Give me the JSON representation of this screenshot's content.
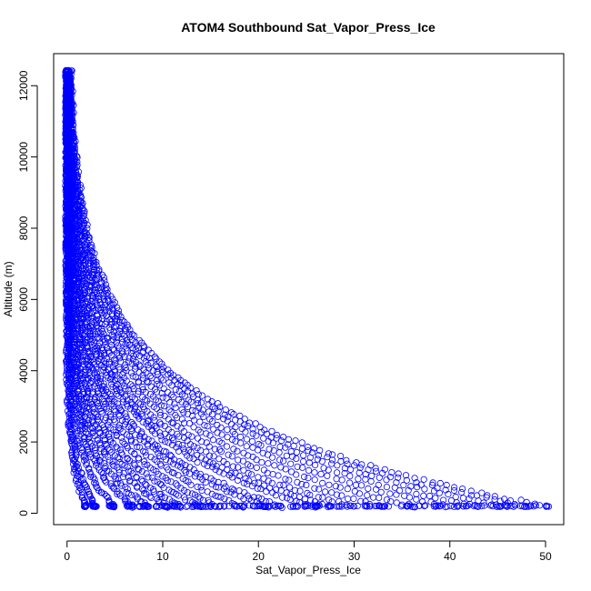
{
  "chart_data": {
    "type": "scatter",
    "title": "ATOM4 Southbound Sat_Vapor_Press_Ice",
    "xlabel": "Sat_Vapor_Press_Ice",
    "ylabel": "Altitude (m)",
    "xlim": [
      -1.4,
      51.9
    ],
    "ylim": [
      -320,
      12900
    ],
    "x_ticks": [
      0,
      10,
      20,
      30,
      40,
      50
    ],
    "y_ticks": [
      0,
      2000,
      4000,
      6000,
      8000,
      10000,
      12000
    ],
    "grid": false,
    "marker": "open-circle",
    "color": "#0000ff",
    "profiles": [
      {
        "scale_height": 1150,
        "surface_x": 2.0
      },
      {
        "scale_height": 1200,
        "surface_x": 3.0
      },
      {
        "scale_height": 1300,
        "surface_x": 5.0
      },
      {
        "scale_height": 1400,
        "surface_x": 7.0
      },
      {
        "scale_height": 1500,
        "surface_x": 8.5
      },
      {
        "scale_height": 1550,
        "surface_x": 10.5
      },
      {
        "scale_height": 1650,
        "surface_x": 12.0
      },
      {
        "scale_height": 1700,
        "surface_x": 14.0
      },
      {
        "scale_height": 1800,
        "surface_x": 16.0
      },
      {
        "scale_height": 1850,
        "surface_x": 18.5
      },
      {
        "scale_height": 1900,
        "surface_x": 21.0
      },
      {
        "scale_height": 1950,
        "surface_x": 22.5
      },
      {
        "scale_height": 2000,
        "surface_x": 26.0
      },
      {
        "scale_height": 2050,
        "surface_x": 27.5
      },
      {
        "scale_height": 2100,
        "surface_x": 30.0
      },
      {
        "scale_height": 2150,
        "surface_x": 33.0
      },
      {
        "scale_height": 2200,
        "surface_x": 36.5
      },
      {
        "scale_height": 2250,
        "surface_x": 40.0
      },
      {
        "scale_height": 2300,
        "surface_x": 43.0
      },
      {
        "scale_height": 2350,
        "surface_x": 46.0
      },
      {
        "scale_height": 2400,
        "surface_x": 48.5
      },
      {
        "scale_height": 2450,
        "surface_x": 50.5
      }
    ],
    "altitude_range": [
      180,
      12400
    ]
  }
}
